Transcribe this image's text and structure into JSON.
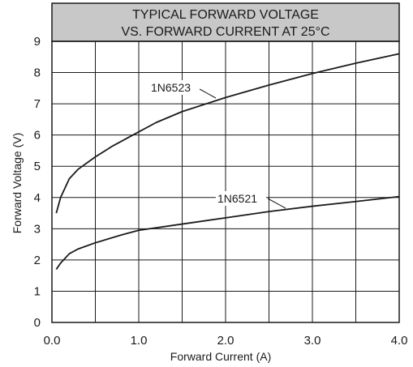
{
  "chart_data": {
    "type": "line",
    "title": "TYPICAL FORWARD VOLTAGE",
    "subtitle": "VS. FORWARD CURRENT AT 25°C",
    "xlabel": "Forward Current (A)",
    "ylabel": "Forward Voltage (V)",
    "xlim": [
      0,
      4.0
    ],
    "ylim": [
      0,
      9
    ],
    "x_ticks": [
      "0.0",
      "1.0",
      "2.0",
      "3.0",
      "4.0"
    ],
    "y_ticks": [
      "0",
      "1",
      "2",
      "3",
      "4",
      "5",
      "6",
      "7",
      "8",
      "9"
    ],
    "grid": true,
    "title_background": "#c8c8c8",
    "line_color": "#1a1a1a",
    "series": [
      {
        "name": "1N6523",
        "x": [
          0.05,
          0.1,
          0.2,
          0.3,
          0.5,
          0.7,
          0.9,
          1.2,
          1.5,
          2.0,
          2.5,
          3.0,
          3.5,
          4.0
        ],
        "y": [
          3.5,
          4.0,
          4.6,
          4.9,
          5.3,
          5.65,
          5.95,
          6.4,
          6.75,
          7.2,
          7.6,
          7.97,
          8.3,
          8.6
        ]
      },
      {
        "name": "1N6521",
        "x": [
          0.05,
          0.1,
          0.2,
          0.3,
          0.5,
          0.8,
          1.0,
          1.5,
          2.0,
          2.5,
          3.0,
          3.5,
          4.0
        ],
        "y": [
          1.7,
          1.9,
          2.2,
          2.35,
          2.55,
          2.8,
          2.95,
          3.15,
          3.35,
          3.55,
          3.72,
          3.87,
          4.03
        ]
      }
    ]
  }
}
